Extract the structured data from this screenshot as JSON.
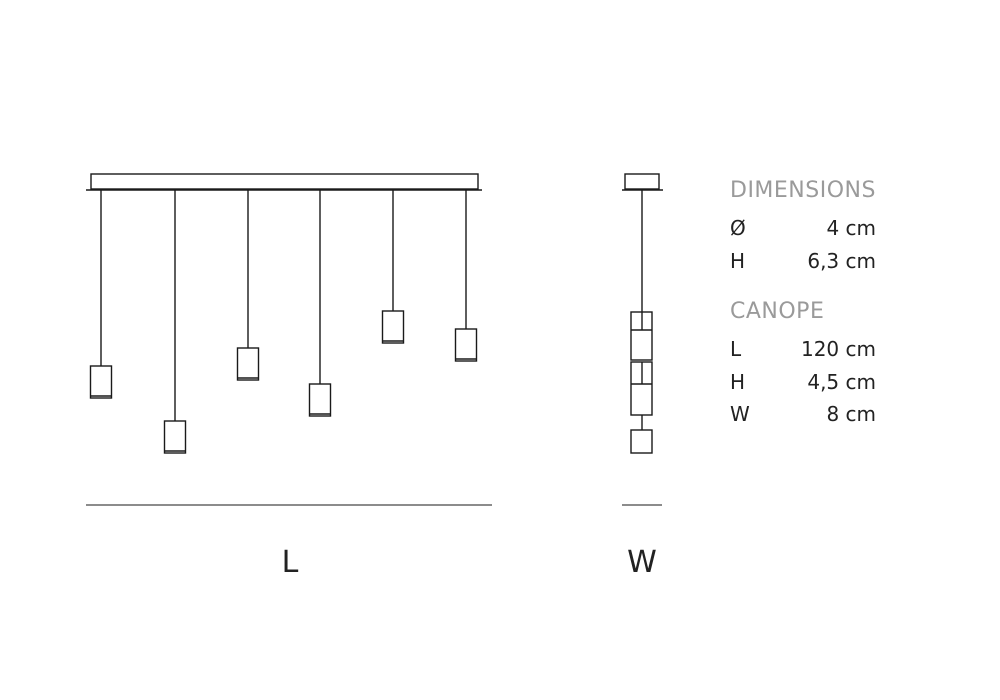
{
  "views": {
    "front_label": "L",
    "side_label": "W"
  },
  "dimensions": {
    "title": "DIMENSIONS",
    "rows": [
      {
        "key": "Ø",
        "value": "4 cm"
      },
      {
        "key": "H",
        "value": "6,3 cm"
      }
    ]
  },
  "canope": {
    "title": "CANOPE",
    "rows": [
      {
        "key": "L",
        "value": "120 cm"
      },
      {
        "key": "H",
        "value": "4,5 cm"
      },
      {
        "key": "W",
        "value": "8 cm"
      }
    ]
  },
  "colors": {
    "line": "#1a1a1a",
    "header_text": "#9a9a9a",
    "text": "#222222"
  }
}
